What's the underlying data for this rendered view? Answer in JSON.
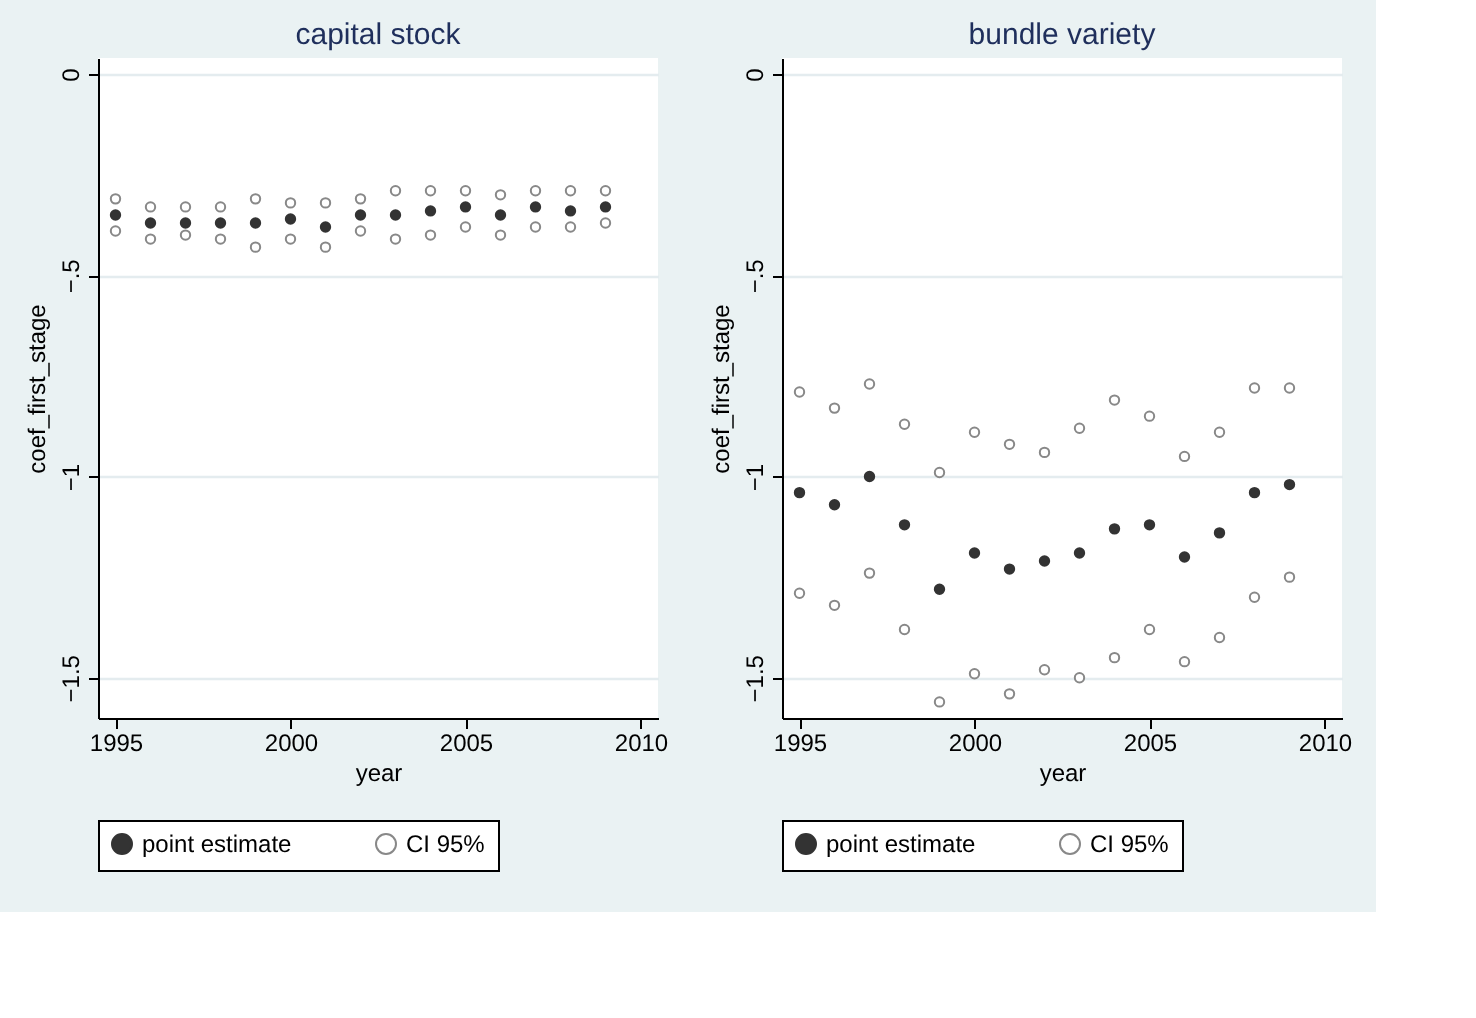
{
  "chart_data": [
    {
      "type": "scatter",
      "title": "capital stock",
      "xlabel": "year",
      "ylabel": "coef_first_stage",
      "x": [
        1995,
        1996,
        1997,
        1998,
        1999,
        2000,
        2001,
        2002,
        2003,
        2004,
        2005,
        2006,
        2007,
        2008,
        2009
      ],
      "xlim": [
        1994.5,
        2010.5
      ],
      "xticks": [
        1995,
        2000,
        2005,
        2010
      ],
      "ylim": [
        -1.6,
        0.04
      ],
      "yticks": [
        {
          "value": 0,
          "label": "0"
        },
        {
          "value": -0.5,
          "label": "−.5"
        },
        {
          "value": -1,
          "label": "−1"
        },
        {
          "value": -1.5,
          "label": "−1.5"
        }
      ],
      "grid": "y",
      "legend": "bottom",
      "marker": "circle",
      "series": [
        {
          "name": "point estimate",
          "color": "#333333",
          "values": [
            -0.35,
            -0.37,
            -0.37,
            -0.37,
            -0.37,
            -0.36,
            -0.38,
            -0.35,
            -0.35,
            -0.34,
            -0.33,
            -0.35,
            -0.33,
            -0.34,
            -0.33
          ]
        },
        {
          "name": "CI 95%",
          "color": "#888888",
          "values": [
            -0.31,
            -0.33,
            -0.33,
            -0.33,
            -0.31,
            -0.32,
            -0.32,
            -0.31,
            -0.29,
            -0.29,
            -0.29,
            -0.3,
            -0.29,
            -0.29,
            -0.29
          ]
        },
        {
          "color": "#888888",
          "values": [
            -0.39,
            -0.41,
            -0.4,
            -0.41,
            -0.43,
            -0.41,
            -0.43,
            -0.39,
            -0.41,
            -0.4,
            -0.38,
            -0.4,
            -0.38,
            -0.38,
            -0.37
          ]
        }
      ]
    },
    {
      "type": "scatter",
      "title": "bundle variety",
      "xlabel": "year",
      "ylabel": "coef_first_stage",
      "x": [
        1995,
        1996,
        1997,
        1998,
        1999,
        2000,
        2001,
        2002,
        2003,
        2004,
        2005,
        2006,
        2007,
        2008,
        2009
      ],
      "xlim": [
        1994.5,
        2010.5
      ],
      "xticks": [
        1995,
        2000,
        2005,
        2010
      ],
      "ylim": [
        -1.6,
        0.04
      ],
      "yticks": [
        {
          "value": 0,
          "label": "0"
        },
        {
          "value": -0.5,
          "label": "−.5"
        },
        {
          "value": -1,
          "label": "−1"
        },
        {
          "value": -1.5,
          "label": "−1.5"
        }
      ],
      "grid": "y",
      "legend": "bottom",
      "marker": "circle",
      "series": [
        {
          "name": "point estimate",
          "color": "#333333",
          "values": [
            -1.04,
            -1.07,
            -1.0,
            -1.12,
            -1.28,
            -1.19,
            -1.23,
            -1.21,
            -1.19,
            -1.13,
            -1.12,
            -1.2,
            -1.14,
            -1.04,
            -1.02
          ]
        },
        {
          "name": "CI 95%",
          "color": "#888888",
          "values": [
            -0.79,
            -0.83,
            -0.77,
            -0.87,
            -0.99,
            -0.89,
            -0.92,
            -0.94,
            -0.88,
            -0.81,
            -0.85,
            -0.95,
            -0.89,
            -0.78,
            -0.78
          ]
        },
        {
          "color": "#888888",
          "values": [
            -1.29,
            -1.32,
            -1.24,
            -1.38,
            -1.56,
            -1.49,
            -1.54,
            -1.48,
            -1.5,
            -1.45,
            -1.38,
            -1.46,
            -1.4,
            -1.3,
            -1.25
          ]
        }
      ]
    }
  ]
}
